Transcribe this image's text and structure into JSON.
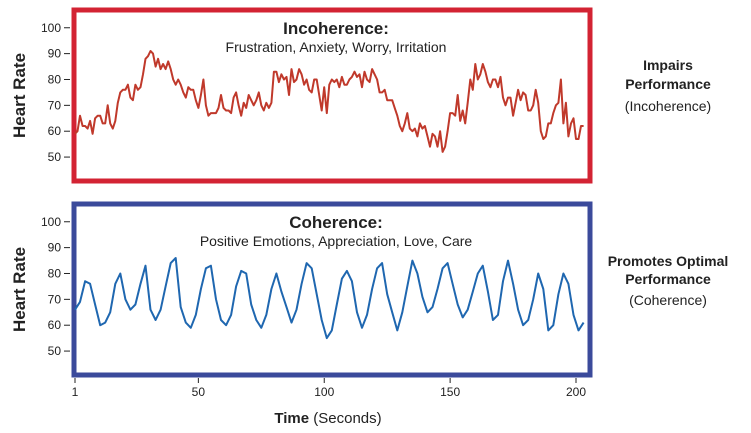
{
  "chart_data": [
    {
      "type": "line",
      "title": "Incoherence:",
      "subtitle": "Frustration, Anxiety, Worry, Irritation",
      "ylabel": "Heart Rate",
      "ylim": [
        45,
        103
      ],
      "yticks": [
        50,
        60,
        70,
        80,
        90,
        100
      ],
      "border_color": "#d32333",
      "line_color": "#c0392b",
      "side_label": {
        "bold": [
          "Impairs",
          "Performance"
        ],
        "normal": "(Incoherence)"
      },
      "x": [
        1,
        2,
        3,
        4,
        5,
        6,
        7,
        8,
        9,
        10,
        11,
        12,
        13,
        14,
        15,
        16,
        17,
        18,
        19,
        20,
        21,
        22,
        23,
        24,
        25,
        26,
        27,
        28,
        29,
        30,
        31,
        32,
        33,
        34,
        35,
        36,
        37,
        38,
        39,
        40,
        41,
        42,
        43,
        44,
        45,
        46,
        47,
        48,
        49,
        50,
        51,
        52,
        53,
        54,
        55,
        56,
        57,
        58,
        59,
        60,
        61,
        62,
        63,
        64,
        65,
        66,
        67,
        68,
        69,
        70,
        71,
        72,
        73,
        74,
        75,
        76,
        77,
        78,
        79,
        80,
        81,
        82,
        83,
        84,
        85,
        86,
        87,
        88,
        89,
        90,
        91,
        92,
        93,
        94,
        95,
        96,
        97,
        98,
        99,
        100,
        101,
        102,
        103,
        104,
        105,
        106,
        107,
        108,
        109,
        110,
        111,
        112,
        113,
        114,
        115,
        116,
        117,
        118,
        119,
        120,
        121,
        122,
        123,
        124,
        125,
        126,
        127,
        128,
        129,
        130,
        131,
        132,
        133,
        134,
        135,
        136,
        137,
        138,
        139,
        140,
        141,
        142,
        143,
        144,
        145,
        146,
        147,
        148,
        149,
        150,
        151,
        152,
        153,
        154,
        155,
        156,
        157,
        158,
        159,
        160,
        161,
        162,
        163,
        164,
        165,
        166,
        167,
        168,
        169,
        170,
        171,
        172,
        173,
        174,
        175,
        176,
        177,
        178,
        179,
        180,
        181,
        182,
        183,
        184,
        185,
        186,
        187,
        188,
        189,
        190,
        191,
        192,
        193,
        194,
        195,
        196,
        197,
        198,
        199,
        200,
        201,
        202,
        203
      ],
      "values": [
        59,
        60,
        66,
        62,
        62,
        61,
        64,
        59,
        65,
        66,
        66,
        63,
        63,
        70,
        63,
        61,
        64,
        71,
        75,
        76,
        76,
        78,
        73,
        72,
        78,
        76,
        77,
        82,
        88,
        89,
        91,
        90,
        85,
        88,
        84,
        86,
        84,
        87,
        84,
        80,
        78,
        80,
        78,
        75,
        73,
        77,
        76,
        76,
        72,
        69,
        74,
        80,
        70,
        66,
        67,
        67,
        67,
        69,
        74,
        69,
        68,
        68,
        67,
        73,
        75,
        70,
        66,
        71,
        69,
        74,
        72,
        70,
        72,
        75,
        70,
        68,
        71,
        69,
        71,
        83,
        83,
        79,
        82,
        80,
        81,
        74,
        84,
        79,
        80,
        84,
        82,
        78,
        80,
        76,
        75,
        80,
        80,
        74,
        68,
        77,
        67,
        78,
        80,
        79,
        80,
        77,
        81,
        78,
        78,
        80,
        81,
        83,
        81,
        82,
        77,
        83,
        80,
        79,
        84,
        82,
        80,
        75,
        75,
        76,
        72,
        72,
        72,
        69,
        66,
        62,
        60,
        63,
        67,
        61,
        60,
        61,
        58,
        63,
        61,
        62,
        58,
        54,
        59,
        58,
        54,
        60,
        52,
        54,
        60,
        67,
        67,
        66,
        74,
        64,
        68,
        63,
        71,
        80,
        76,
        86,
        80,
        82,
        86,
        83,
        79,
        77,
        80,
        80,
        77,
        81,
        73,
        70,
        73,
        73,
        66,
        71,
        76,
        72,
        75,
        74,
        68,
        68,
        70,
        76,
        71,
        60,
        57,
        58,
        63,
        63,
        67,
        70,
        71,
        80,
        63,
        71,
        58,
        63,
        65,
        57,
        57,
        62,
        62
      ]
    },
    {
      "type": "line",
      "title": "Coherence:",
      "subtitle": "Positive Emotions, Appreciation, Love, Care",
      "ylabel": "Heart Rate",
      "ylim": [
        45,
        103
      ],
      "yticks": [
        50,
        60,
        70,
        80,
        90,
        100
      ],
      "border_color": "#3b4a9b",
      "line_color": "#1f67b0",
      "side_label": {
        "bold": [
          "Promotes Optimal",
          "Performance"
        ],
        "normal": "(Coherence)"
      },
      "xlabel_bold": "Time",
      "xlabel_normal": " (Seconds)",
      "xticks": [
        1,
        50,
        100,
        150,
        200
      ],
      "x": [
        1,
        3,
        5,
        7,
        9,
        11,
        13,
        15,
        17,
        19,
        21,
        23,
        25,
        27,
        29,
        31,
        33,
        35,
        37,
        39,
        41,
        43,
        45,
        47,
        49,
        51,
        53,
        55,
        57,
        59,
        61,
        63,
        65,
        67,
        69,
        71,
        73,
        75,
        77,
        79,
        81,
        83,
        85,
        87,
        89,
        91,
        93,
        95,
        97,
        99,
        101,
        103,
        105,
        107,
        109,
        111,
        113,
        115,
        117,
        119,
        121,
        123,
        125,
        127,
        129,
        131,
        133,
        135,
        137,
        139,
        141,
        143,
        145,
        147,
        149,
        151,
        153,
        155,
        157,
        159,
        161,
        163,
        165,
        167,
        169,
        171,
        173,
        175,
        177,
        179,
        181,
        183,
        185,
        187,
        189,
        191,
        193,
        195,
        197,
        199,
        201,
        203
      ],
      "values": [
        66,
        69,
        77,
        76,
        68,
        60,
        61,
        65,
        76,
        80,
        70,
        66,
        68,
        76,
        83,
        66,
        62,
        66,
        75,
        84,
        86,
        67,
        61,
        59,
        64,
        74,
        82,
        83,
        70,
        62,
        60,
        64,
        75,
        81,
        80,
        68,
        62,
        59,
        64,
        74,
        80,
        73,
        67,
        61,
        66,
        76,
        84,
        82,
        72,
        62,
        55,
        58,
        68,
        78,
        81,
        77,
        65,
        59,
        64,
        74,
        82,
        84,
        72,
        65,
        58,
        65,
        75,
        85,
        80,
        71,
        65,
        67,
        74,
        82,
        84,
        76,
        68,
        63,
        66,
        73,
        80,
        83,
        73,
        62,
        64,
        77,
        85,
        76,
        66,
        60,
        62,
        70,
        80,
        74,
        58,
        60,
        72,
        80,
        76,
        64,
        58,
        61
      ]
    }
  ]
}
